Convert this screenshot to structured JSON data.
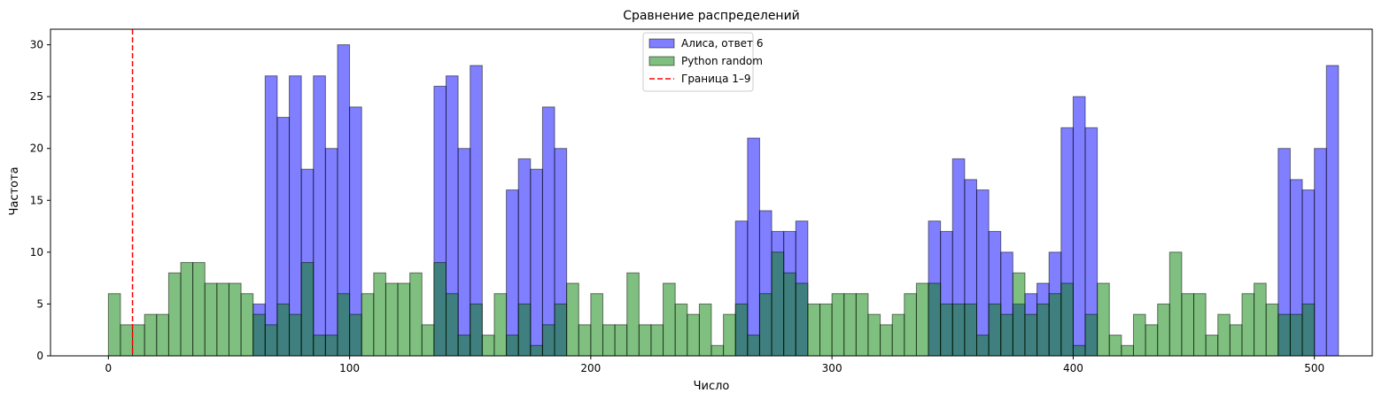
{
  "chart_data": {
    "type": "bar",
    "title": "Сравнение распределений",
    "xlabel": "Число",
    "ylabel": "Частота",
    "xlim": [
      -24,
      524
    ],
    "ylim": [
      0,
      31.5
    ],
    "xticks": [
      0,
      100,
      200,
      300,
      400,
      500
    ],
    "yticks": [
      0,
      5,
      10,
      15,
      20,
      25,
      30
    ],
    "grid": false,
    "legend_position": "top-center",
    "bin_start": 0,
    "bin_width": 5,
    "series": [
      {
        "name": "Алиса, ответ 6",
        "color": "#0000ff",
        "values": [
          0,
          0,
          0,
          0,
          0,
          0,
          0,
          0,
          0,
          0,
          0,
          0,
          5,
          27,
          23,
          27,
          18,
          27,
          20,
          30,
          24,
          0,
          0,
          0,
          0,
          0,
          0,
          26,
          27,
          20,
          28,
          0,
          0,
          16,
          19,
          18,
          24,
          20,
          0,
          0,
          0,
          0,
          0,
          0,
          0,
          0,
          0,
          0,
          0,
          0,
          0,
          0,
          13,
          21,
          14,
          12,
          12,
          13,
          0,
          0,
          0,
          0,
          0,
          0,
          0,
          0,
          0,
          0,
          13,
          12,
          19,
          17,
          16,
          12,
          10,
          5,
          6,
          7,
          10,
          22,
          25,
          22,
          0,
          0,
          0,
          0,
          0,
          0,
          0,
          0,
          0,
          0,
          0,
          0,
          0,
          0,
          0,
          20,
          17,
          16,
          20,
          28
        ]
      },
      {
        "name": "Python random",
        "color": "#008000",
        "values": [
          6,
          3,
          3,
          4,
          4,
          8,
          9,
          9,
          7,
          7,
          7,
          6,
          4,
          3,
          5,
          4,
          9,
          2,
          2,
          6,
          4,
          6,
          8,
          7,
          7,
          8,
          3,
          9,
          6,
          2,
          5,
          2,
          6,
          2,
          5,
          1,
          3,
          5,
          7,
          3,
          6,
          3,
          3,
          8,
          3,
          3,
          7,
          5,
          4,
          5,
          1,
          4,
          5,
          2,
          6,
          10,
          8,
          7,
          5,
          5,
          6,
          6,
          6,
          4,
          3,
          4,
          6,
          7,
          7,
          5,
          5,
          5,
          2,
          5,
          4,
          8,
          4,
          5,
          6,
          7,
          1,
          4,
          7,
          2,
          1,
          4,
          3,
          5,
          10,
          6,
          6,
          2,
          4,
          3,
          6,
          7,
          5,
          4,
          4,
          5
        ]
      }
    ],
    "reference_line": {
      "name": "Граница 1–9",
      "x": 10,
      "color": "#ff0000",
      "style": "dashed"
    }
  }
}
